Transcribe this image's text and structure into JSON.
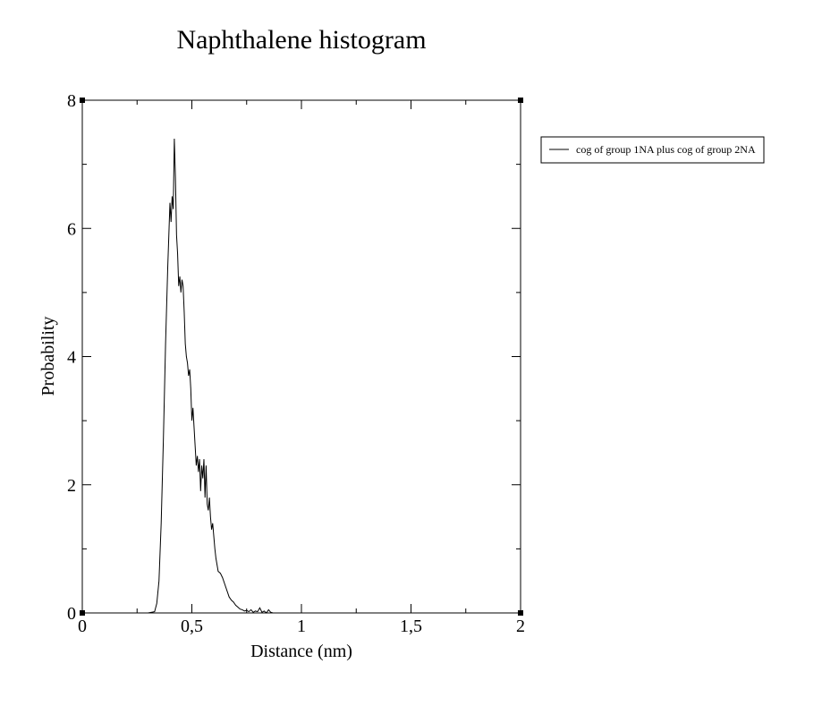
{
  "chart_data": {
    "type": "line",
    "title": "Naphthalene histogram",
    "xlabel": "Distance (nm)",
    "ylabel": "Probability",
    "xlim": [
      0,
      2
    ],
    "ylim": [
      0,
      8
    ],
    "x_ticks": [
      0,
      0.5,
      1,
      1.5,
      2
    ],
    "x_tick_labels": [
      "0",
      "0,5",
      "1",
      "1,5",
      "2"
    ],
    "y_ticks": [
      0,
      2,
      4,
      6,
      8
    ],
    "y_tick_labels": [
      "0",
      "2",
      "4",
      "6",
      "8"
    ],
    "x_minor_step": 0.25,
    "y_minor_step": 1,
    "grid": false,
    "legend_position": "right",
    "line_color": "#000000",
    "series": [
      {
        "name": "cog of group 1NA plus cog of group 2NA",
        "x": [
          0.0,
          0.3,
          0.33,
          0.34,
          0.35,
          0.36,
          0.37,
          0.38,
          0.39,
          0.4,
          0.405,
          0.41,
          0.415,
          0.42,
          0.425,
          0.43,
          0.435,
          0.44,
          0.445,
          0.45,
          0.455,
          0.46,
          0.465,
          0.47,
          0.475,
          0.48,
          0.485,
          0.49,
          0.495,
          0.5,
          0.505,
          0.51,
          0.515,
          0.52,
          0.525,
          0.53,
          0.535,
          0.54,
          0.545,
          0.55,
          0.555,
          0.56,
          0.565,
          0.57,
          0.575,
          0.58,
          0.585,
          0.59,
          0.595,
          0.6,
          0.605,
          0.61,
          0.62,
          0.63,
          0.64,
          0.65,
          0.66,
          0.67,
          0.68,
          0.69,
          0.7,
          0.71,
          0.72,
          0.73,
          0.74,
          0.75,
          0.76,
          0.77,
          0.78,
          0.79,
          0.8,
          0.81,
          0.82,
          0.83,
          0.84,
          0.85,
          0.86,
          0.87,
          0.88
        ],
        "y": [
          0.0,
          0.0,
          0.02,
          0.15,
          0.5,
          1.4,
          2.7,
          4.2,
          5.4,
          6.4,
          6.1,
          6.5,
          6.3,
          7.4,
          6.8,
          5.9,
          5.6,
          5.1,
          5.25,
          5.0,
          5.2,
          5.1,
          4.7,
          4.2,
          4.0,
          3.9,
          3.7,
          3.8,
          3.5,
          3.0,
          3.2,
          2.9,
          2.6,
          2.3,
          2.45,
          2.2,
          2.4,
          1.9,
          2.3,
          2.1,
          2.4,
          1.8,
          2.3,
          1.7,
          1.6,
          1.8,
          1.5,
          1.3,
          1.4,
          1.2,
          1.0,
          0.85,
          0.65,
          0.62,
          0.55,
          0.45,
          0.35,
          0.25,
          0.2,
          0.17,
          0.12,
          0.09,
          0.06,
          0.05,
          0.03,
          0.04,
          0.02,
          0.05,
          0.01,
          0.03,
          0.02,
          0.08,
          0.01,
          0.03,
          0.0,
          0.05,
          0.01,
          0.0,
          0.0
        ]
      }
    ]
  }
}
